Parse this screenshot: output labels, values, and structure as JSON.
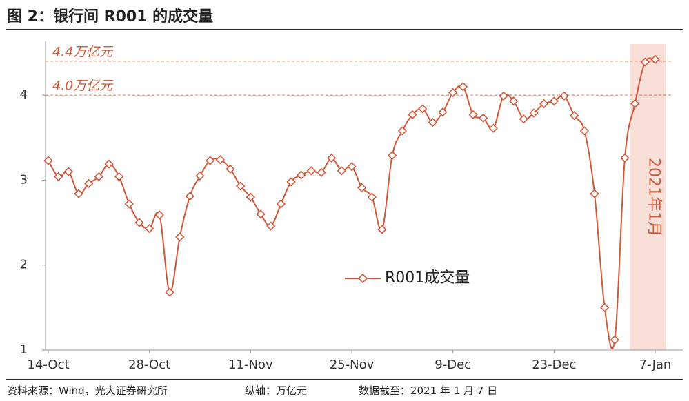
{
  "title": "图 2：银行间 R001 的成交量",
  "footer": {
    "source": "资料来源：Wind，光大证券研究所",
    "unit": "纵轴：万亿元",
    "cutoff": "数据截至：2021 年 1 月 7 日"
  },
  "colors": {
    "series": "#D0593A",
    "shade": "#F8E0D9",
    "axis": "#999999",
    "text": "#333333"
  },
  "chart_data": {
    "type": "line",
    "y_ticks": [
      "1",
      "2",
      "3",
      "4"
    ],
    "ylim": [
      1,
      4.65
    ],
    "x_ticks": [
      {
        "label": "14-Oct",
        "index": 0
      },
      {
        "label": "28-Oct",
        "index": 10
      },
      {
        "label": "11-Nov",
        "index": 20
      },
      {
        "label": "25-Nov",
        "index": 30
      },
      {
        "label": "9-Dec",
        "index": 40
      },
      {
        "label": "23-Dec",
        "index": 50
      },
      {
        "label": "7-Jan",
        "index": 60
      }
    ],
    "reference_lines": [
      {
        "value": 4.4,
        "label": "4.4万亿元"
      },
      {
        "value": 4.0,
        "label": "4.0万亿元"
      }
    ],
    "shaded_region": {
      "from_index": 57.5,
      "to_index": 61.5,
      "label": "2021年1月"
    },
    "legend": {
      "label": "R001成交量",
      "placement": "center"
    },
    "series": [
      {
        "name": "R001成交量",
        "values": [
          3.23,
          3.04,
          3.1,
          2.84,
          2.96,
          3.04,
          3.19,
          3.04,
          2.72,
          2.5,
          2.43,
          2.59,
          1.68,
          2.33,
          2.81,
          3.05,
          3.23,
          3.24,
          3.13,
          2.93,
          2.8,
          2.6,
          2.46,
          2.72,
          2.98,
          3.06,
          3.11,
          3.09,
          3.26,
          3.11,
          3.16,
          2.91,
          2.8,
          2.42,
          3.29,
          3.58,
          3.77,
          3.84,
          3.68,
          3.8,
          4.03,
          4.1,
          3.77,
          3.73,
          3.61,
          3.99,
          3.93,
          3.72,
          3.79,
          3.9,
          3.93,
          3.99,
          3.76,
          3.58,
          2.84,
          1.5,
          1.12,
          3.26,
          3.9,
          4.39,
          4.42
        ]
      }
    ]
  }
}
